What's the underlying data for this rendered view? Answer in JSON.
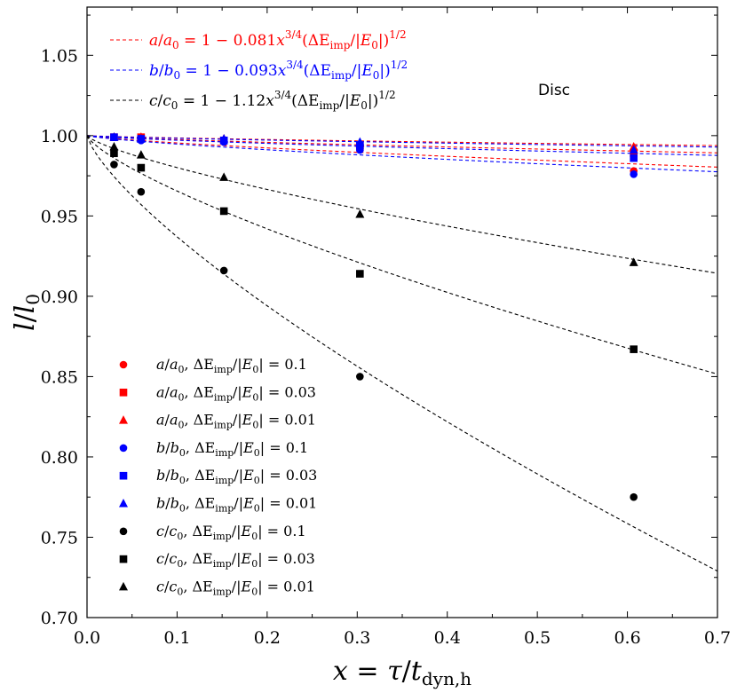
{
  "chart_data": {
    "type": "scatter",
    "title": "",
    "xlabel": "x = τ/t_dyn,h",
    "xlabel_parts": {
      "lhs": "x",
      "eq": " = ",
      "tau": "τ",
      "slash": "/",
      "t": "t",
      "sub": "dyn,h"
    },
    "ylabel": "l/l0",
    "ylabel_parts": {
      "l": "l",
      "slash": "/",
      "l0": "l",
      "sub": "0"
    },
    "xlim": [
      0.0,
      0.7
    ],
    "ylim": [
      0.7,
      1.08
    ],
    "xticks": [
      0.0,
      0.1,
      0.2,
      0.3,
      0.4,
      0.5,
      0.6,
      0.7
    ],
    "xtick_labels": [
      "0.0",
      "0.1",
      "0.2",
      "0.3",
      "0.4",
      "0.5",
      "0.6",
      "0.7"
    ],
    "yticks": [
      0.7,
      0.75,
      0.8,
      0.85,
      0.9,
      0.95,
      1.0,
      1.05
    ],
    "ytick_labels": [
      "0.70",
      "0.75",
      "0.80",
      "0.85",
      "0.90",
      "0.95",
      "1.00",
      "1.05"
    ],
    "annotation": "Disc",
    "x": [
      0.03,
      0.06,
      0.152,
      0.303,
      0.607
    ],
    "series": [
      {
        "name": "a/a0, ΔE_imp/|E0| = 0.1",
        "axis": "a",
        "sub": "0",
        "de": "0.1",
        "marker": "circle",
        "color": "#ff0000",
        "values": [
          0.999,
          0.998,
          0.996,
          0.992,
          0.978
        ]
      },
      {
        "name": "a/a0, ΔE_imp/|E0| = 0.03",
        "axis": "a",
        "sub": "0",
        "de": "0.03",
        "marker": "square",
        "color": "#ff0000",
        "values": [
          0.999,
          0.999,
          0.997,
          0.993,
          0.989
        ]
      },
      {
        "name": "a/a0, ΔE_imp/|E0| = 0.01",
        "axis": "a",
        "sub": "0",
        "de": "0.01",
        "marker": "triangle",
        "color": "#ff0000",
        "values": [
          0.999,
          0.999,
          0.998,
          0.995,
          0.993
        ]
      },
      {
        "name": "b/b0, ΔE_imp/|E0| = 0.1",
        "axis": "b",
        "sub": "0",
        "de": "0.1",
        "marker": "circle",
        "color": "#0000ff",
        "values": [
          0.999,
          0.997,
          0.996,
          0.991,
          0.976
        ]
      },
      {
        "name": "b/b0, ΔE_imp/|E0| = 0.03",
        "axis": "b",
        "sub": "0",
        "de": "0.03",
        "marker": "square",
        "color": "#0000ff",
        "values": [
          0.999,
          0.998,
          0.997,
          0.994,
          0.986
        ]
      },
      {
        "name": "b/b0, ΔE_imp/|E0| = 0.01",
        "axis": "b",
        "sub": "0",
        "de": "0.01",
        "marker": "triangle",
        "color": "#0000ff",
        "values": [
          0.999,
          0.998,
          0.998,
          0.996,
          0.991
        ]
      },
      {
        "name": "c/c0, ΔE_imp/|E0| = 0.1",
        "axis": "c",
        "sub": "0",
        "de": "0.1",
        "marker": "circle",
        "color": "#000000",
        "values": [
          0.982,
          0.965,
          0.916,
          0.85,
          0.775
        ]
      },
      {
        "name": "c/c0, ΔE_imp/|E0| = 0.03",
        "axis": "c",
        "sub": "0",
        "de": "0.03",
        "marker": "square",
        "color": "#000000",
        "values": [
          0.989,
          0.98,
          0.953,
          0.914,
          0.867
        ]
      },
      {
        "name": "c/c0, ΔE_imp/|E0| = 0.01",
        "axis": "c",
        "sub": "0",
        "de": "0.01",
        "marker": "triangle",
        "color": "#000000",
        "values": [
          0.993,
          0.988,
          0.974,
          0.951,
          0.921
        ]
      }
    ],
    "fits": [
      {
        "name": "a/a0 = 1−0.081x^{3/4}(ΔE_imp/|E0|)^{1/2}",
        "axis": "a",
        "coef": 0.081,
        "coef_label": "0.081",
        "color": "#ff0000",
        "de_values": [
          0.1,
          0.03,
          0.01
        ]
      },
      {
        "name": "b/b0 = 1−0.093x^{3/4}(ΔE_imp/|E0|)^{1/2}",
        "axis": "b",
        "coef": 0.093,
        "coef_label": "0.093",
        "color": "#0000ff",
        "de_values": [
          0.1,
          0.03,
          0.01
        ]
      },
      {
        "name": "c/c0 = 1−1.12x^{3/4}(ΔE_imp/|E0|)^{1/2}",
        "axis": "c",
        "coef": 1.12,
        "coef_label": "1.12",
        "color": "#000000",
        "de_values": [
          0.1,
          0.03,
          0.01
        ]
      }
    ],
    "fit_exponents": {
      "x_power": 0.75,
      "de_power": 0.5,
      "x_power_label": "3/4",
      "de_power_label": "1/2"
    },
    "legend_position": "lower-left",
    "fit_legend_position": "upper-left"
  }
}
